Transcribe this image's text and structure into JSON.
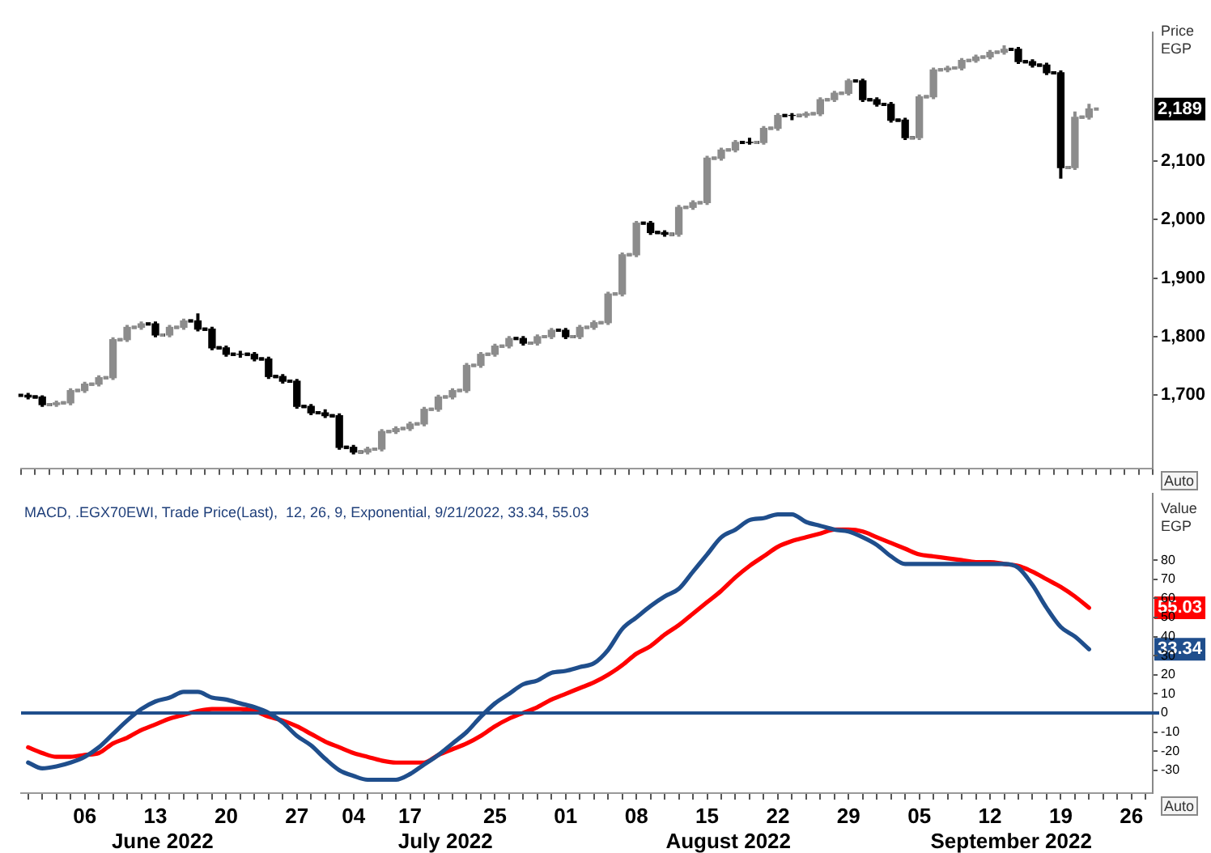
{
  "chart_data": [
    {
      "type": "candlestick",
      "ylabel": "Price EGP",
      "tick_labels": "y",
      "colors": [
        "#000000",
        "#000000",
        "#8c8c8c",
        "#8c8c8c",
        "#8c8c8c",
        "#8c8c8c",
        "#8c8c8c",
        "#8c8c8c",
        "#8c8c8c",
        "#000000",
        "#8c8c8c",
        "#8c8c8c",
        "#000000",
        "#000000",
        "#000000",
        "#000000",
        "#000000",
        "#000000",
        "#000000",
        "#000000",
        "#000000",
        "#000000",
        "#000000",
        "#000000",
        "#8c8c8c",
        "#8c8c8c",
        "#8c8c8c",
        "#8c8c8c",
        "#8c8c8c",
        "#8c8c8c",
        "#8c8c8c",
        "#8c8c8c",
        "#8c8c8c",
        "#8c8c8c",
        "#8c8c8c",
        "#000000",
        "#8c8c8c",
        "#8c8c8c",
        "#000000",
        "#8c8c8c",
        "#8c8c8c",
        "#8c8c8c",
        "#8c8c8c",
        "#8c8c8c",
        "#000000",
        "#000000",
        "#8c8c8c",
        "#8c8c8c",
        "#8c8c8c",
        "#8c8c8c",
        "#8c8c8c",
        "#000000",
        "#8c8c8c",
        "#8c8c8c",
        "#000000",
        "#8c8c8c",
        "#8c8c8c",
        "#8c8c8c",
        "#8c8c8c",
        "#000000",
        "#000000",
        "#000000",
        "#000000",
        "#8c8c8c",
        "#8c8c8c",
        "#8c8c8c",
        "#8c8c8c",
        "#8c8c8c",
        "#8c8c8c",
        "#8c8c8c",
        "#000000",
        "#000000",
        "#000000",
        "#000000",
        "#8c8c8c",
        "#8c8c8c",
        null,
        null,
        null,
        null
      ],
      "categories": [
        null,
        null,
        null,
        null,
        "06",
        null,
        null,
        null,
        null,
        "13",
        null,
        null,
        null,
        null,
        "20",
        null,
        null,
        null,
        null,
        "27",
        null,
        null,
        null,
        "04",
        null,
        null,
        null,
        "17",
        null,
        null,
        null,
        null,
        null,
        "25",
        null,
        null,
        null,
        null,
        "01",
        null,
        null,
        null,
        null,
        "08",
        null,
        null,
        null,
        null,
        "15",
        null,
        null,
        null,
        null,
        "22",
        null,
        null,
        null,
        null,
        "29",
        null,
        null,
        null,
        null,
        "05",
        null,
        null,
        null,
        null,
        "12",
        null,
        null,
        null,
        null,
        "19",
        null,
        null,
        null,
        null,
        "26",
        null
      ],
      "ohlc": [
        [
          1700,
          1704,
          1693,
          1697
        ],
        [
          1697,
          1700,
          1680,
          1684
        ],
        [
          1684,
          1691,
          1680,
          1687
        ],
        [
          1687,
          1712,
          1683,
          1708
        ],
        [
          1708,
          1723,
          1704,
          1719
        ],
        [
          1719,
          1734,
          1715,
          1730
        ],
        [
          1730,
          1799,
          1726,
          1795
        ],
        [
          1795,
          1820,
          1791,
          1816
        ],
        [
          1816,
          1826,
          1812,
          1822
        ],
        [
          1822,
          1826,
          1799,
          1803
        ],
        [
          1803,
          1820,
          1799,
          1816
        ],
        [
          1816,
          1831,
          1812,
          1827
        ],
        [
          1827,
          1840,
          1809,
          1813
        ],
        [
          1813,
          1817,
          1777,
          1781
        ],
        [
          1781,
          1785,
          1766,
          1770
        ],
        [
          1770,
          1776,
          1764,
          1770
        ],
        [
          1770,
          1774,
          1758,
          1762
        ],
        [
          1762,
          1766,
          1728,
          1732
        ],
        [
          1732,
          1736,
          1720,
          1724
        ],
        [
          1724,
          1728,
          1677,
          1681
        ],
        [
          1681,
          1685,
          1666,
          1670
        ],
        [
          1670,
          1676,
          1661,
          1665
        ],
        [
          1665,
          1669,
          1607,
          1611
        ],
        [
          1611,
          1615,
          1599,
          1603
        ],
        [
          1603,
          1612,
          1599,
          1608
        ],
        [
          1608,
          1642,
          1604,
          1638
        ],
        [
          1638,
          1647,
          1634,
          1643
        ],
        [
          1643,
          1655,
          1639,
          1651
        ],
        [
          1651,
          1680,
          1647,
          1676
        ],
        [
          1676,
          1701,
          1672,
          1697
        ],
        [
          1697,
          1712,
          1693,
          1708
        ],
        [
          1708,
          1755,
          1704,
          1751
        ],
        [
          1751,
          1774,
          1747,
          1770
        ],
        [
          1770,
          1788,
          1766,
          1784
        ],
        [
          1784,
          1801,
          1780,
          1797
        ],
        [
          1797,
          1801,
          1785,
          1789
        ],
        [
          1789,
          1804,
          1785,
          1800
        ],
        [
          1800,
          1815,
          1796,
          1811
        ],
        [
          1811,
          1815,
          1796,
          1800
        ],
        [
          1800,
          1820,
          1796,
          1816
        ],
        [
          1816,
          1828,
          1812,
          1824
        ],
        [
          1824,
          1877,
          1820,
          1873
        ],
        [
          1873,
          1944,
          1869,
          1940
        ],
        [
          1940,
          1998,
          1936,
          1994
        ],
        [
          1994,
          1998,
          1974,
          1978
        ],
        [
          1978,
          1982,
          1971,
          1975
        ],
        [
          1975,
          2025,
          1971,
          2021
        ],
        [
          2021,
          2033,
          2017,
          2029
        ],
        [
          2029,
          2109,
          2025,
          2105
        ],
        [
          2105,
          2123,
          2101,
          2119
        ],
        [
          2119,
          2136,
          2115,
          2132
        ],
        [
          2132,
          2140,
          2128,
          2132
        ],
        [
          2132,
          2160,
          2128,
          2156
        ],
        [
          2156,
          2182,
          2152,
          2178
        ],
        [
          2178,
          2182,
          2170,
          2178
        ],
        [
          2178,
          2185,
          2174,
          2181
        ],
        [
          2181,
          2209,
          2177,
          2205
        ],
        [
          2205,
          2220,
          2201,
          2216
        ],
        [
          2216,
          2241,
          2212,
          2237
        ],
        [
          2237,
          2241,
          2201,
          2205
        ],
        [
          2205,
          2209,
          2193,
          2197
        ],
        [
          2197,
          2201,
          2166,
          2170
        ],
        [
          2170,
          2174,
          2136,
          2140
        ],
        [
          2140,
          2214,
          2136,
          2210
        ],
        [
          2210,
          2260,
          2206,
          2256
        ],
        [
          2256,
          2263,
          2252,
          2259
        ],
        [
          2259,
          2276,
          2255,
          2272
        ],
        [
          2272,
          2282,
          2268,
          2278
        ],
        [
          2278,
          2290,
          2274,
          2286
        ],
        [
          2286,
          2298,
          2282,
          2291
        ],
        [
          2291,
          2295,
          2266,
          2270
        ],
        [
          2270,
          2274,
          2260,
          2264
        ],
        [
          2264,
          2268,
          2247,
          2251
        ],
        [
          2251,
          2255,
          2070,
          2089
        ],
        [
          2089,
          2185,
          2085,
          2175
        ],
        [
          2175,
          2198,
          2171,
          2189
        ],
        null,
        null,
        null,
        null
      ],
      "ylim": [
        1575,
        2320
      ],
      "yticks": [
        {
          "value": 1700,
          "label": "1,700"
        },
        {
          "value": 1800,
          "label": "1,800"
        },
        {
          "value": 1900,
          "label": "1,900"
        },
        {
          "value": 2000,
          "label": "2,000"
        },
        {
          "value": 2100,
          "label": "2,100"
        }
      ],
      "annotations": [
        {
          "text": "2,189",
          "y": 2189
        },
        "Auto"
      ]
    },
    {
      "type": "line",
      "title": "MACD, .EGX70EWI, Trade Price(Last),  12, 26, 9, Exponential, 9/21/2022, 33.34, 55.03",
      "ylabel": "Value EGP",
      "marker": "none",
      "categories": [
        null,
        null,
        null,
        null,
        "06",
        null,
        null,
        null,
        null,
        "13",
        null,
        null,
        null,
        null,
        "20",
        null,
        null,
        null,
        null,
        "27",
        null,
        null,
        null,
        "04",
        null,
        null,
        null,
        "17",
        null,
        null,
        null,
        null,
        null,
        "25",
        null,
        null,
        null,
        null,
        "01",
        null,
        null,
        null,
        null,
        "08",
        null,
        null,
        null,
        null,
        "15",
        null,
        null,
        null,
        null,
        "22",
        null,
        null,
        null,
        null,
        "29",
        null,
        null,
        null,
        null,
        "05",
        null,
        null,
        null,
        null,
        "12",
        null,
        null,
        null,
        null,
        "19",
        null,
        null,
        null,
        null,
        "26",
        null
      ],
      "series": [
        {
          "color": "#1f4e8c",
          "values": [
            -26,
            -29,
            -28,
            -26,
            -23,
            -18,
            -11,
            -4,
            2,
            6,
            8,
            11,
            11,
            8,
            7,
            5,
            3,
            0,
            -5,
            -12,
            -17,
            -24,
            -30,
            -33,
            -35,
            -35,
            -35,
            -32,
            -27,
            -22,
            -16,
            -10,
            -2,
            5,
            10,
            15,
            17,
            21,
            22,
            24,
            26,
            33,
            44,
            50,
            56,
            61,
            65,
            74,
            83,
            92,
            96,
            101,
            102,
            104,
            104,
            100,
            98,
            96,
            95,
            92,
            88,
            82,
            78,
            78,
            78,
            78,
            78,
            78,
            78,
            78,
            76,
            67,
            55,
            45,
            40,
            33.34,
            null,
            null,
            null,
            null
          ]
        },
        {
          "color": "#ff0000",
          "values": [
            -18,
            -21,
            -23,
            -23,
            -22,
            -21,
            -16,
            -13,
            -9,
            -6,
            -3,
            -1,
            1,
            2,
            2,
            2,
            1,
            -2,
            -4,
            -7,
            -11,
            -15,
            -18,
            -21,
            -23,
            -25,
            -26,
            -26,
            -26,
            -22,
            -19,
            -16,
            -12,
            -7,
            -3,
            0,
            3,
            7,
            10,
            13,
            16,
            20,
            25,
            31,
            35,
            41,
            46,
            52,
            58,
            64,
            71,
            77,
            82,
            87,
            90,
            92,
            94,
            96,
            96,
            95,
            92,
            89,
            86,
            83,
            82,
            81,
            80,
            79,
            79,
            78,
            77,
            74,
            70,
            66,
            61,
            55.03,
            null,
            null,
            null,
            null
          ]
        }
      ],
      "ylim": [
        -42,
        115
      ],
      "yticks": [
        -30,
        -20,
        -10,
        0,
        10,
        20,
        30,
        40,
        50,
        60,
        70,
        80
      ],
      "ref_lines": [
        {
          "axis": "y",
          "value": 0,
          "color": "#1f4e8c"
        }
      ],
      "annotations": [
        {
          "text": "55.03",
          "y": 55.03
        },
        {
          "text": "33.34",
          "y": 33.34
        },
        "June 2022",
        "July 2022",
        "August 2022",
        "September 2022",
        "Auto"
      ]
    }
  ]
}
